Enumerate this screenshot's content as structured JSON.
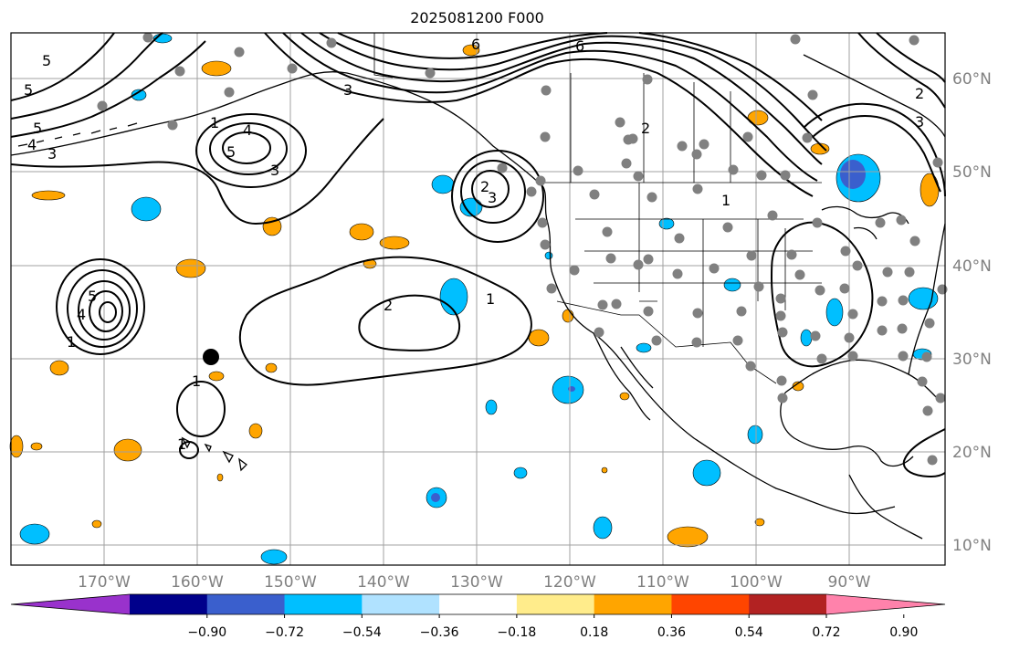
{
  "title": "2025081200 F000",
  "map": {
    "lat_labels": [
      "60°N",
      "50°N",
      "40°N",
      "30°N",
      "20°N",
      "10°N"
    ],
    "lon_labels": [
      "170°W",
      "160°W",
      "150°W",
      "140°W",
      "130°W",
      "120°W",
      "110°W",
      "100°W",
      "90°W"
    ],
    "contour_labels": [
      "5",
      "5",
      "5",
      "4",
      "3",
      "4",
      "5",
      "3",
      "6",
      "6",
      "3",
      "2",
      "1",
      "2",
      "3",
      "1",
      "2",
      "1",
      "5",
      "4",
      "1",
      "1",
      "1",
      "2",
      "3"
    ]
  },
  "colorbar": {
    "colors": [
      "#9932cc",
      "#00008b",
      "#3a5fcd",
      "#00bfff",
      "#b0e2ff",
      "#ffffff",
      "#ffec8b",
      "#ffa500",
      "#ff4500",
      "#b22222",
      "#ff82ab"
    ],
    "ticks": [
      "−0.90",
      "−0.72",
      "−0.54",
      "−0.36",
      "−0.18",
      "0.18",
      "0.36",
      "0.54",
      "0.72",
      "0.90"
    ]
  },
  "colors": {
    "station": "#808080",
    "grid": "#a0a0a0",
    "positive": "#ffa500",
    "negative": "#00bfff"
  }
}
